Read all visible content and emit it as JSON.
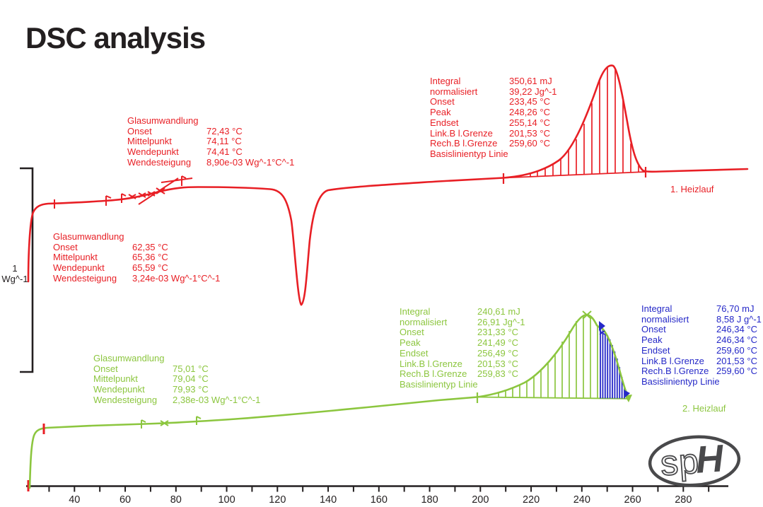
{
  "page": {
    "title": "DSC analysis"
  },
  "colors": {
    "run1_red": "#e81f25",
    "run2_green": "#8cc63f",
    "partial_blue": "#2629c8",
    "text_black": "#231f20",
    "logo_gray": "#49494b"
  },
  "chart_data": {
    "type": "line",
    "title": "DSC analysis",
    "xlabel": "",
    "ylabel": "",
    "x_axis": {
      "tick_min": 30,
      "tick_max": 290,
      "tick_step": 10,
      "labeled_ticks": [
        40,
        60,
        80,
        100,
        120,
        140,
        160,
        180,
        200,
        220,
        240,
        260,
        280
      ]
    },
    "y_scale_bar": {
      "value": "1",
      "unit": "Wg^-1"
    },
    "legend_position": "on-curve",
    "grid": false,
    "series": [
      {
        "name": "1. Heizlauf",
        "color": "#e81f25",
        "description": "First heating run: glass transition (onset 72,43 °C / 62,35 °C marks), sharp endothermic dip near 130 °C, hatched melting peak onset 233,45 °C, peak 248,26 °C, endset 255,14 °C, integral 350,61 mJ"
      },
      {
        "name": "2. Heizlauf",
        "color": "#8cc63f",
        "description": "Second heating run: glass transition onset 75,01 °C, hatched melting peak onset 231,33 °C, peak 241,49 °C, endset 256,49 °C, integral 240,61 mJ; blue partial area peak 246,34 °C, integral 76,70 mJ"
      }
    ]
  },
  "annotations": {
    "red_glass_upper": {
      "title": "Glasumwandlung",
      "rows": [
        {
          "label": "Onset",
          "value": "72,43 °C"
        },
        {
          "label": "Mittelpunkt",
          "value": "74,11 °C"
        },
        {
          "label": "Wendepunkt",
          "value": "74,41 °C"
        },
        {
          "label": "Wendesteigung",
          "value": "8,90e-03 Wg^-1°C^-1"
        }
      ]
    },
    "red_integral": {
      "rows": [
        {
          "label": "Integral",
          "value": "350,61 mJ"
        },
        {
          "label": "normalisiert",
          "value": "39,22 Jg^-1"
        },
        {
          "label": "Onset",
          "value": "233,45 °C"
        },
        {
          "label": "Peak",
          "value": "248,26 °C"
        },
        {
          "label": "Endset",
          "value": "255,14 °C"
        },
        {
          "label": "Link.B l.Grenze",
          "value": "201,53 °C"
        },
        {
          "label": "Rech.B l.Grenze",
          "value": "259,60 °C"
        },
        {
          "label": "Basislinientyp Linie",
          "value": ""
        }
      ]
    },
    "red_glass_lower": {
      "title": "Glasumwandlung",
      "rows": [
        {
          "label": "Onset",
          "value": "62,35 °C"
        },
        {
          "label": "Mittelpunkt",
          "value": "65,36 °C"
        },
        {
          "label": "Wendepunkt",
          "value": "65,59 °C"
        },
        {
          "label": "Wendesteigung",
          "value": "3,24e-03 Wg^-1°C^-1"
        }
      ]
    },
    "green_integral": {
      "rows": [
        {
          "label": "Integral",
          "value": "240,61 mJ"
        },
        {
          "label": "normalisiert",
          "value": "26,91 Jg^-1"
        },
        {
          "label": "Onset",
          "value": "231,33 °C"
        },
        {
          "label": "Peak",
          "value": "241,49 °C"
        },
        {
          "label": "Endset",
          "value": "256,49 °C"
        },
        {
          "label": "Link.B l.Grenze",
          "value": "201,53 °C"
        },
        {
          "label": "Rech.B l.Grenze",
          "value": "259,83 °C"
        },
        {
          "label": "Basislinientyp Linie",
          "value": ""
        }
      ]
    },
    "green_glass": {
      "title": "Glasumwandlung",
      "rows": [
        {
          "label": "Onset",
          "value": "75,01 °C"
        },
        {
          "label": "Mittelpunkt",
          "value": "79,04 °C"
        },
        {
          "label": "Wendepunkt",
          "value": "79,93 °C"
        },
        {
          "label": "Wendesteigung",
          "value": "2,38e-03 Wg^-1°C^-1"
        }
      ]
    },
    "blue_integral": {
      "rows": [
        {
          "label": "Integral",
          "value": "76,70 mJ"
        },
        {
          "label": "normalisiert",
          "value": "8,58 J g^-1"
        },
        {
          "label": "Onset",
          "value": "246,34 °C"
        },
        {
          "label": "Peak",
          "value": "246,34 °C"
        },
        {
          "label": "Endset",
          "value": "259,60 °C"
        },
        {
          "label": "Link.B l.Grenze",
          "value": "201,53 °C"
        },
        {
          "label": "Rech.B l.Grenze",
          "value": "259,60 °C"
        },
        {
          "label": "Basislinientyp Linie",
          "value": ""
        }
      ]
    },
    "run1_label": "1. Heizlauf",
    "run2_label": "2. Heizlauf"
  },
  "logo": {
    "text_outline": "sp",
    "text_bold": "H"
  }
}
